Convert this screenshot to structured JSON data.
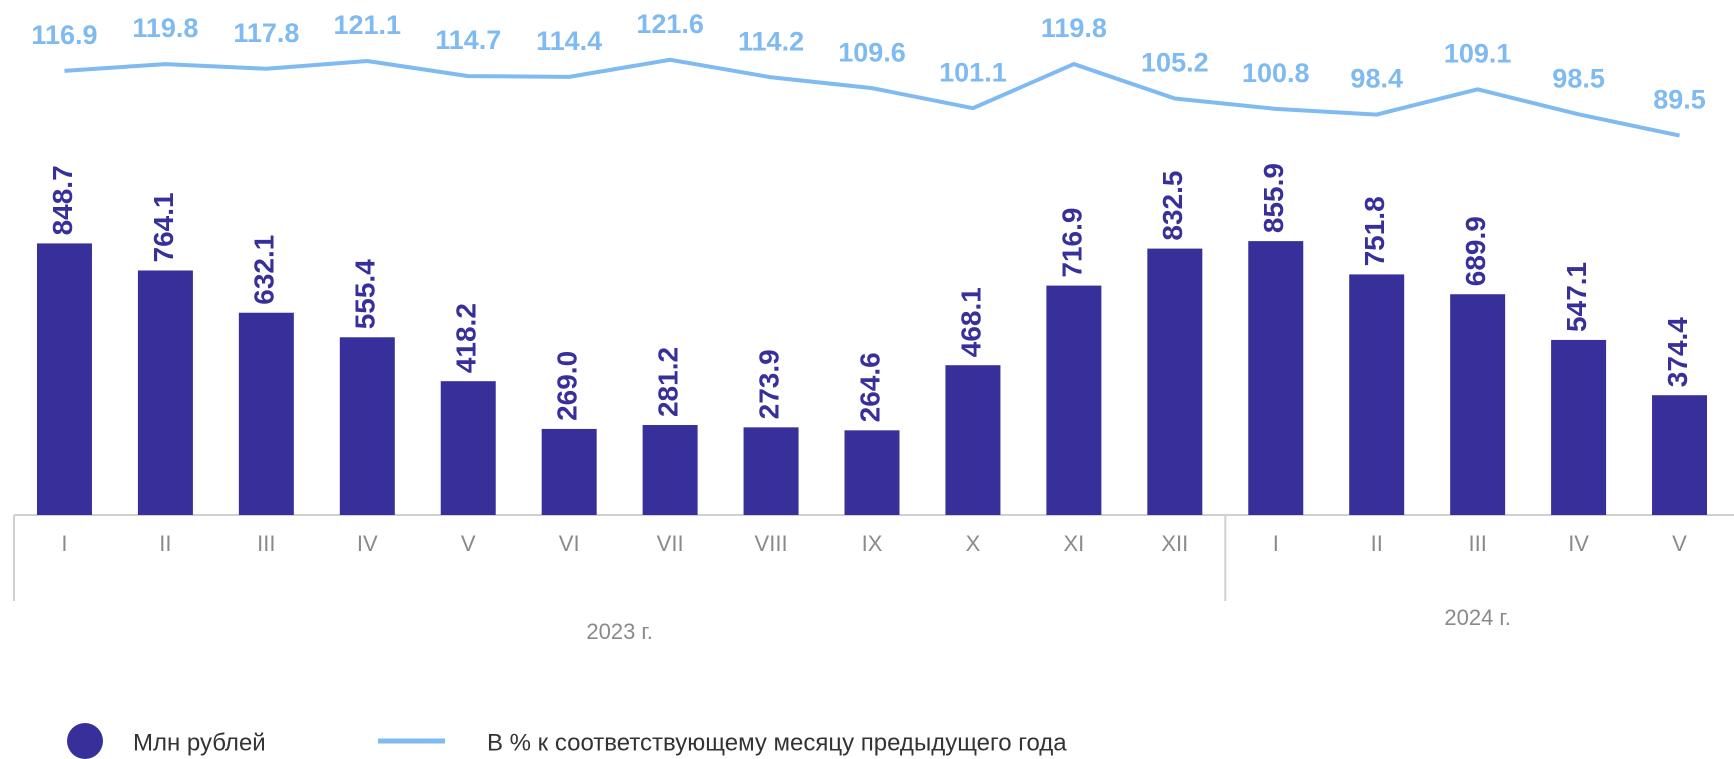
{
  "chart_data": {
    "type": "bar_line",
    "categories": [
      "I",
      "II",
      "III",
      "IV",
      "V",
      "VI",
      "VII",
      "VIII",
      "IX",
      "X",
      "XI",
      "XII",
      "I",
      "II",
      "III",
      "IV",
      "V"
    ],
    "category_groups": [
      {
        "label": "2023 г.",
        "count": 12
      },
      {
        "label": "2024 г.",
        "count": 5
      }
    ],
    "series": [
      {
        "name": "Млн рублей",
        "type": "bar",
        "color": "#37309a",
        "values": [
          848.7,
          764.1,
          632.1,
          555.4,
          418.2,
          269.0,
          281.2,
          273.9,
          264.6,
          468.1,
          716.9,
          832.5,
          855.9,
          751.8,
          689.9,
          547.1,
          374.4
        ],
        "value_labels": [
          "848.7",
          "764.1",
          "632.1",
          "555.4",
          "418.2",
          "269.0",
          "281.2",
          "273.9",
          "264.6",
          "468.1",
          "716.9",
          "832.5",
          "855.9",
          "751.8",
          "689.9",
          "547.1",
          "374.4"
        ]
      },
      {
        "name": "В % к соответствующему месяцу предыдущего года",
        "type": "line",
        "axis": "y2",
        "color": "#7fbaf0",
        "values": [
          116.9,
          119.8,
          117.8,
          121.1,
          114.7,
          114.4,
          121.6,
          114.2,
          109.6,
          101.1,
          119.8,
          105.2,
          100.8,
          98.4,
          109.1,
          98.5,
          89.5
        ]
      }
    ],
    "ylim": [
      0,
      1000
    ],
    "y2lim": [
      80,
      130
    ]
  }
}
